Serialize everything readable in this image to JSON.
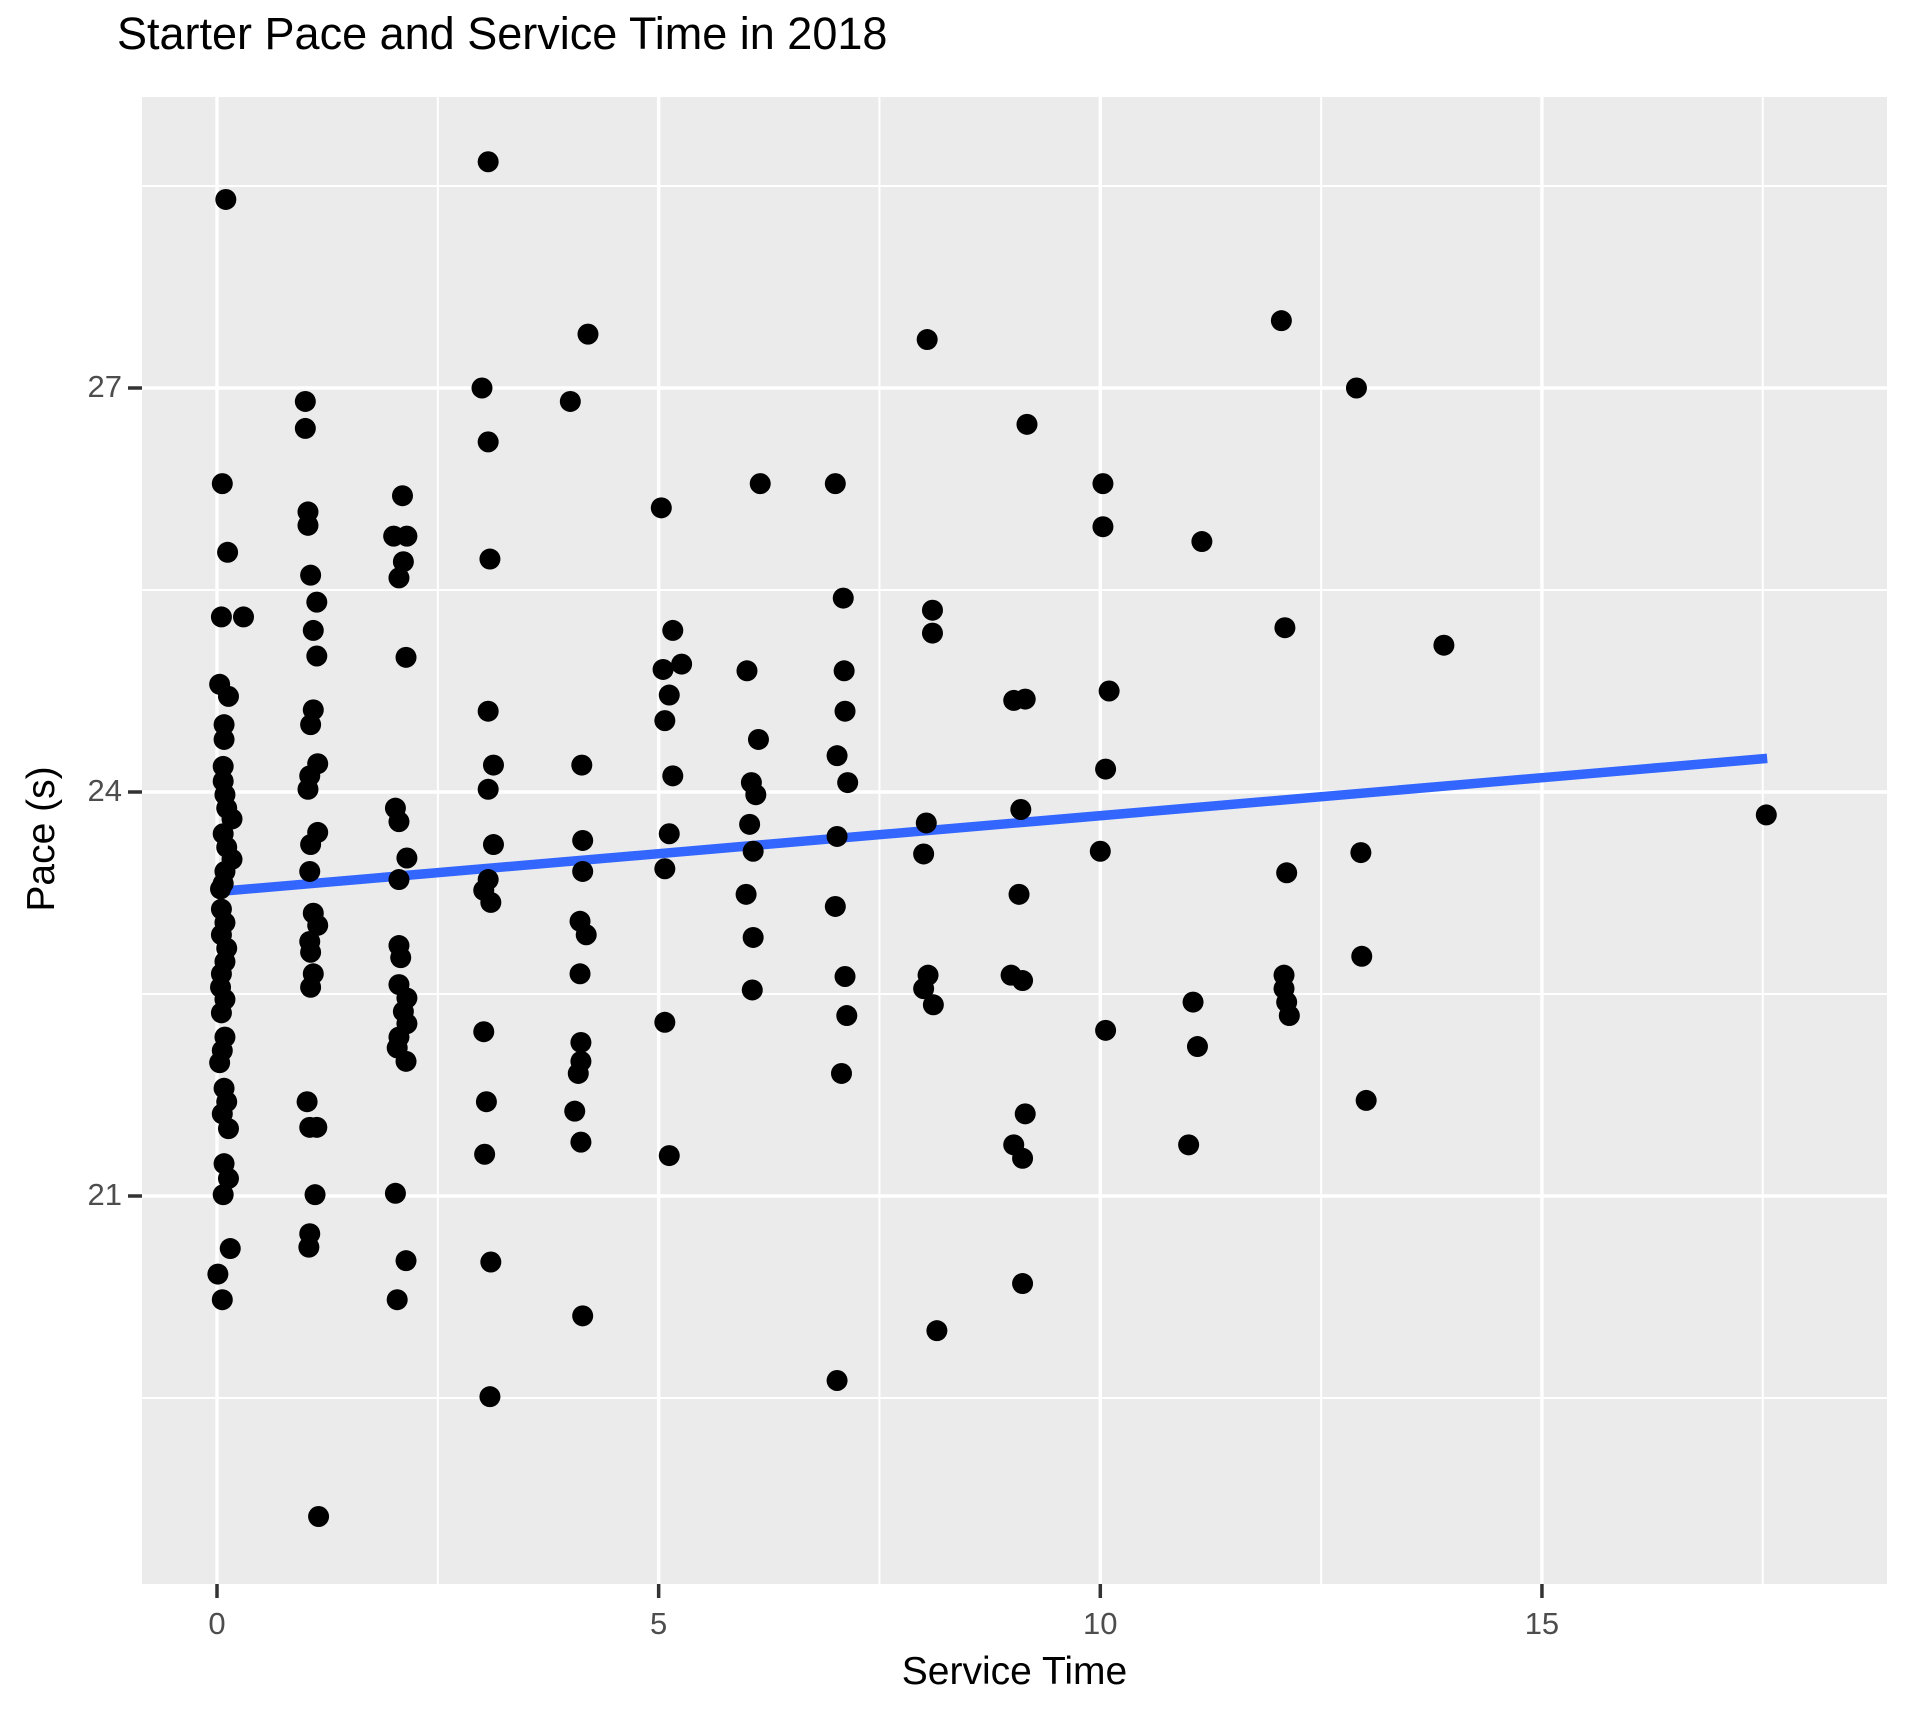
{
  "title": "Starter Pace and Service Time in 2018",
  "colors": {
    "panel_background": "#EBEBEB",
    "gridline": "#FFFFFF",
    "point": "#000000",
    "smooth_line": "#3366FF",
    "tick_label": "#4D4D4D",
    "tick_mark": "#333333",
    "title_text": "#000000"
  },
  "chart_data": {
    "type": "scatter",
    "title": "Starter Pace and Service Time in 2018",
    "xlabel": "Service Time",
    "ylabel": "Pace (s)",
    "x_ticks": [
      0,
      5,
      10,
      15
    ],
    "y_ticks": [
      21,
      24,
      27
    ],
    "x_minor": [
      2.5,
      7.5,
      12.5,
      17.5
    ],
    "y_minor": [
      19.5,
      22.5,
      25.5,
      28.5
    ],
    "xlim": [
      -0.85,
      18.9
    ],
    "ylim": [
      18.1,
      29.16
    ],
    "grid": "on",
    "legend": "none",
    "regression_line": {
      "x1": 0.0,
      "y1": 23.26,
      "x2": 17.55,
      "y2": 24.25
    },
    "points": [
      [
        0.1,
        28.4
      ],
      [
        0.06,
        26.29
      ],
      [
        0.12,
        25.78
      ],
      [
        0.05,
        25.3
      ],
      [
        0.3,
        25.3
      ],
      [
        0.03,
        24.8
      ],
      [
        0.13,
        24.71
      ],
      [
        0.08,
        24.5
      ],
      [
        0.08,
        24.39
      ],
      [
        0.07,
        24.19
      ],
      [
        0.07,
        24.08
      ],
      [
        0.09,
        23.98
      ],
      [
        0.11,
        23.88
      ],
      [
        0.17,
        23.8
      ],
      [
        0.07,
        23.69
      ],
      [
        0.11,
        23.59
      ],
      [
        0.17,
        23.5
      ],
      [
        0.09,
        23.41
      ],
      [
        0.07,
        23.32
      ],
      [
        0.04,
        23.28
      ],
      [
        0.05,
        23.13
      ],
      [
        0.09,
        23.03
      ],
      [
        0.05,
        22.94
      ],
      [
        0.11,
        22.84
      ],
      [
        0.09,
        22.74
      ],
      [
        0.05,
        22.65
      ],
      [
        0.04,
        22.55
      ],
      [
        0.09,
        22.46
      ],
      [
        0.05,
        22.36
      ],
      [
        0.09,
        22.18
      ],
      [
        0.06,
        22.08
      ],
      [
        0.03,
        21.99
      ],
      [
        0.08,
        21.8
      ],
      [
        0.11,
        21.7
      ],
      [
        0.06,
        21.61
      ],
      [
        0.13,
        21.5
      ],
      [
        0.08,
        21.24
      ],
      [
        0.13,
        21.13
      ],
      [
        0.07,
        21.01
      ],
      [
        0.15,
        20.61
      ],
      [
        0.01,
        20.42
      ],
      [
        0.06,
        20.23
      ],
      [
        1.0,
        26.9
      ],
      [
        1.0,
        26.7
      ],
      [
        1.03,
        26.08
      ],
      [
        1.03,
        25.98
      ],
      [
        1.06,
        25.61
      ],
      [
        1.13,
        25.41
      ],
      [
        1.09,
        25.2
      ],
      [
        1.13,
        25.01
      ],
      [
        1.09,
        24.61
      ],
      [
        1.06,
        24.5
      ],
      [
        1.14,
        24.21
      ],
      [
        1.05,
        24.12
      ],
      [
        1.03,
        24.02
      ],
      [
        1.14,
        23.7
      ],
      [
        1.06,
        23.61
      ],
      [
        1.05,
        23.41
      ],
      [
        1.09,
        23.1
      ],
      [
        1.14,
        23.01
      ],
      [
        1.05,
        22.89
      ],
      [
        1.06,
        22.81
      ],
      [
        1.09,
        22.65
      ],
      [
        1.06,
        22.55
      ],
      [
        1.02,
        21.7
      ],
      [
        1.05,
        21.51
      ],
      [
        1.13,
        21.51
      ],
      [
        1.11,
        21.01
      ],
      [
        1.05,
        20.72
      ],
      [
        1.04,
        20.62
      ],
      [
        1.15,
        18.62
      ],
      [
        2.1,
        26.2
      ],
      [
        2.0,
        25.9
      ],
      [
        2.15,
        25.9
      ],
      [
        2.11,
        25.71
      ],
      [
        2.06,
        25.59
      ],
      [
        2.14,
        25.0
      ],
      [
        2.02,
        23.88
      ],
      [
        2.06,
        23.78
      ],
      [
        2.15,
        23.51
      ],
      [
        2.06,
        23.35
      ],
      [
        2.06,
        22.86
      ],
      [
        2.08,
        22.77
      ],
      [
        2.06,
        22.57
      ],
      [
        2.15,
        22.47
      ],
      [
        2.11,
        22.37
      ],
      [
        2.15,
        22.28
      ],
      [
        2.06,
        22.18
      ],
      [
        2.04,
        22.1
      ],
      [
        2.14,
        22.0
      ],
      [
        2.02,
        21.02
      ],
      [
        2.14,
        20.52
      ],
      [
        2.04,
        20.23
      ],
      [
        3.07,
        28.68
      ],
      [
        3.0,
        27.0
      ],
      [
        3.07,
        26.6
      ],
      [
        3.09,
        25.73
      ],
      [
        3.07,
        24.6
      ],
      [
        3.13,
        24.2
      ],
      [
        3.07,
        24.02
      ],
      [
        3.13,
        23.61
      ],
      [
        3.07,
        23.35
      ],
      [
        3.02,
        23.27
      ],
      [
        3.1,
        23.18
      ],
      [
        3.02,
        22.22
      ],
      [
        3.05,
        21.7
      ],
      [
        3.03,
        21.31
      ],
      [
        3.1,
        20.51
      ],
      [
        3.09,
        19.51
      ],
      [
        4.2,
        27.4
      ],
      [
        4.0,
        26.9
      ],
      [
        4.13,
        24.2
      ],
      [
        4.14,
        23.64
      ],
      [
        4.14,
        23.41
      ],
      [
        4.11,
        23.04
      ],
      [
        4.18,
        22.94
      ],
      [
        4.11,
        22.65
      ],
      [
        4.12,
        22.14
      ],
      [
        4.12,
        22.0
      ],
      [
        4.09,
        21.91
      ],
      [
        4.05,
        21.63
      ],
      [
        4.12,
        21.4
      ],
      [
        4.14,
        20.11
      ],
      [
        5.03,
        26.11
      ],
      [
        5.16,
        25.2
      ],
      [
        5.26,
        24.95
      ],
      [
        5.05,
        24.91
      ],
      [
        5.12,
        24.72
      ],
      [
        5.07,
        24.53
      ],
      [
        5.16,
        24.12
      ],
      [
        5.12,
        23.69
      ],
      [
        5.07,
        23.43
      ],
      [
        5.07,
        22.29
      ],
      [
        5.12,
        21.3
      ],
      [
        6.15,
        26.29
      ],
      [
        6.0,
        24.9
      ],
      [
        6.13,
        24.39
      ],
      [
        6.05,
        24.07
      ],
      [
        6.1,
        23.98
      ],
      [
        6.03,
        23.76
      ],
      [
        6.07,
        23.56
      ],
      [
        5.99,
        23.24
      ],
      [
        6.07,
        22.92
      ],
      [
        6.06,
        22.53
      ],
      [
        7.0,
        26.29
      ],
      [
        7.09,
        25.44
      ],
      [
        7.1,
        24.9
      ],
      [
        7.11,
        24.6
      ],
      [
        7.02,
        24.27
      ],
      [
        7.14,
        24.07
      ],
      [
        7.02,
        23.67
      ],
      [
        7.0,
        23.15
      ],
      [
        7.11,
        22.63
      ],
      [
        7.13,
        22.34
      ],
      [
        7.07,
        21.91
      ],
      [
        7.02,
        19.63
      ],
      [
        8.04,
        27.36
      ],
      [
        8.1,
        25.35
      ],
      [
        8.1,
        25.18
      ],
      [
        8.03,
        23.77
      ],
      [
        8.0,
        23.54
      ],
      [
        8.05,
        22.64
      ],
      [
        8.0,
        22.54
      ],
      [
        8.11,
        22.42
      ],
      [
        8.15,
        20.0
      ],
      [
        9.17,
        26.73
      ],
      [
        9.02,
        24.68
      ],
      [
        9.15,
        24.69
      ],
      [
        9.1,
        23.87
      ],
      [
        9.08,
        23.24
      ],
      [
        8.99,
        22.64
      ],
      [
        9.12,
        22.6
      ],
      [
        9.15,
        21.61
      ],
      [
        9.02,
        21.38
      ],
      [
        9.12,
        21.28
      ],
      [
        9.12,
        20.35
      ],
      [
        10.03,
        26.29
      ],
      [
        10.03,
        25.97
      ],
      [
        10.1,
        24.75
      ],
      [
        10.06,
        24.17
      ],
      [
        10.0,
        23.56
      ],
      [
        10.06,
        22.23
      ],
      [
        11.15,
        25.86
      ],
      [
        11.05,
        22.44
      ],
      [
        11.1,
        22.11
      ],
      [
        11.0,
        21.38
      ],
      [
        12.05,
        27.5
      ],
      [
        12.9,
        27.0
      ],
      [
        12.09,
        25.22
      ],
      [
        12.11,
        23.4
      ],
      [
        12.95,
        23.55
      ],
      [
        12.96,
        22.78
      ],
      [
        12.08,
        22.64
      ],
      [
        12.08,
        22.54
      ],
      [
        12.11,
        22.44
      ],
      [
        12.14,
        22.34
      ],
      [
        13.01,
        21.71
      ],
      [
        13.89,
        25.09
      ],
      [
        17.54,
        23.83
      ]
    ]
  }
}
